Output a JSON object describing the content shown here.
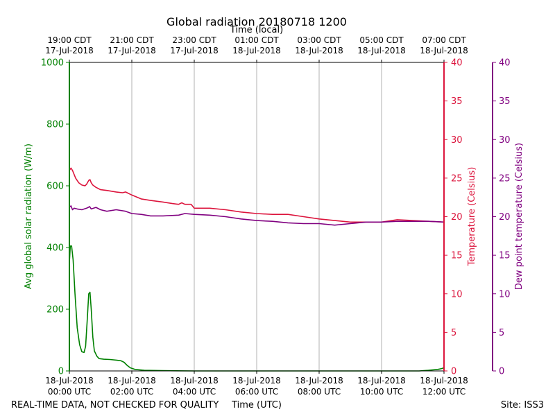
{
  "chart_data": {
    "type": "line",
    "title": "Global radiation 20180718 1200",
    "xlabel": "Time (UTC)",
    "xlabel_top": "Time (local)",
    "xlim": [
      0,
      12
    ],
    "x_ticks_bottom": [
      {
        "value": 0,
        "line1": "18-Jul-2018",
        "line2": "00:00 UTC"
      },
      {
        "value": 2,
        "line1": "18-Jul-2018",
        "line2": "02:00 UTC"
      },
      {
        "value": 4,
        "line1": "18-Jul-2018",
        "line2": "04:00 UTC"
      },
      {
        "value": 6,
        "line1": "18-Jul-2018",
        "line2": "06:00 UTC"
      },
      {
        "value": 8,
        "line1": "18-Jul-2018",
        "line2": "08:00 UTC"
      },
      {
        "value": 10,
        "line1": "18-Jul-2018",
        "line2": "10:00 UTC"
      },
      {
        "value": 12,
        "line1": "18-Jul-2018",
        "line2": "12:00 UTC"
      }
    ],
    "x_ticks_top": [
      {
        "value": 0,
        "line1": "19:00 CDT",
        "line2": "17-Jul-2018"
      },
      {
        "value": 2,
        "line1": "21:00 CDT",
        "line2": "17-Jul-2018"
      },
      {
        "value": 4,
        "line1": "23:00 CDT",
        "line2": "17-Jul-2018"
      },
      {
        "value": 6,
        "line1": "01:00 CDT",
        "line2": "18-Jul-2018"
      },
      {
        "value": 8,
        "line1": "03:00 CDT",
        "line2": "18-Jul-2018"
      },
      {
        "value": 10,
        "line1": "05:00 CDT",
        "line2": "18-Jul-2018"
      },
      {
        "value": 12,
        "line1": "07:00 CDT",
        "line2": "18-Jul-2018"
      }
    ],
    "grid": "vertical",
    "axes": {
      "radiation": {
        "label": "Avg global solar radiation (W/m)",
        "ylim": [
          0,
          1000
        ],
        "ticks": [
          0,
          200,
          400,
          600,
          800,
          1000
        ],
        "color": "#008000"
      },
      "temperature": {
        "label": "Temperature (Celsius)",
        "ylim": [
          0,
          40
        ],
        "ticks": [
          0,
          5,
          10,
          15,
          20,
          25,
          30,
          35,
          40
        ],
        "color": "#dc143c"
      },
      "dewpoint": {
        "label": "Dew point temperature (Celsius)",
        "ylim": [
          0,
          40
        ],
        "ticks": [
          0,
          5,
          10,
          15,
          20,
          25,
          30,
          35,
          40
        ],
        "color": "#800080"
      }
    },
    "series": [
      {
        "name": "Global radiation",
        "axis": "radiation",
        "color": "#008000",
        "points": [
          [
            0,
            350
          ],
          [
            0.03,
            405
          ],
          [
            0.07,
            405
          ],
          [
            0.12,
            360
          ],
          [
            0.18,
            250
          ],
          [
            0.25,
            140
          ],
          [
            0.33,
            85
          ],
          [
            0.4,
            62
          ],
          [
            0.47,
            60
          ],
          [
            0.52,
            80
          ],
          [
            0.57,
            160
          ],
          [
            0.62,
            250
          ],
          [
            0.66,
            255
          ],
          [
            0.7,
            200
          ],
          [
            0.75,
            110
          ],
          [
            0.8,
            65
          ],
          [
            0.88,
            48
          ],
          [
            0.95,
            40
          ],
          [
            1.1,
            38
          ],
          [
            1.3,
            37
          ],
          [
            1.5,
            35
          ],
          [
            1.65,
            33
          ],
          [
            1.75,
            28
          ],
          [
            1.85,
            18
          ],
          [
            1.95,
            10
          ],
          [
            2.1,
            5
          ],
          [
            2.4,
            2
          ],
          [
            3,
            1
          ],
          [
            4,
            0
          ],
          [
            6,
            0
          ],
          [
            8,
            0
          ],
          [
            10,
            0
          ],
          [
            11.2,
            0
          ],
          [
            11.5,
            2
          ],
          [
            11.8,
            5
          ],
          [
            11.95,
            8
          ],
          [
            12,
            12
          ]
        ]
      },
      {
        "name": "Temperature",
        "axis": "temperature",
        "color": "#dc143c",
        "points": [
          [
            0,
            26.0
          ],
          [
            0.05,
            26.3
          ],
          [
            0.1,
            26.0
          ],
          [
            0.2,
            25.0
          ],
          [
            0.3,
            24.4
          ],
          [
            0.4,
            24.1
          ],
          [
            0.5,
            24.0
          ],
          [
            0.55,
            24.2
          ],
          [
            0.62,
            24.7
          ],
          [
            0.66,
            24.8
          ],
          [
            0.7,
            24.4
          ],
          [
            0.75,
            24.1
          ],
          [
            0.85,
            23.8
          ],
          [
            1.0,
            23.5
          ],
          [
            1.2,
            23.4
          ],
          [
            1.5,
            23.2
          ],
          [
            1.7,
            23.1
          ],
          [
            1.8,
            23.2
          ],
          [
            2.0,
            22.8
          ],
          [
            2.3,
            22.3
          ],
          [
            2.6,
            22.1
          ],
          [
            3.0,
            21.9
          ],
          [
            3.3,
            21.7
          ],
          [
            3.5,
            21.6
          ],
          [
            3.6,
            21.8
          ],
          [
            3.7,
            21.6
          ],
          [
            3.9,
            21.6
          ],
          [
            4.0,
            21.1
          ],
          [
            4.5,
            21.1
          ],
          [
            5.0,
            20.9
          ],
          [
            5.5,
            20.6
          ],
          [
            6.0,
            20.4
          ],
          [
            6.5,
            20.3
          ],
          [
            7.0,
            20.3
          ],
          [
            7.5,
            20.0
          ],
          [
            8.0,
            19.7
          ],
          [
            8.5,
            19.5
          ],
          [
            9.0,
            19.3
          ],
          [
            9.5,
            19.3
          ],
          [
            10.0,
            19.3
          ],
          [
            10.5,
            19.6
          ],
          [
            11.0,
            19.5
          ],
          [
            11.5,
            19.4
          ],
          [
            12.0,
            19.3
          ]
        ]
      },
      {
        "name": "Dew point",
        "axis": "dewpoint",
        "color": "#800080",
        "points": [
          [
            0,
            21.2
          ],
          [
            0.05,
            21.4
          ],
          [
            0.1,
            20.9
          ],
          [
            0.15,
            21.1
          ],
          [
            0.25,
            21.0
          ],
          [
            0.4,
            20.9
          ],
          [
            0.55,
            21.1
          ],
          [
            0.65,
            21.3
          ],
          [
            0.7,
            21.0
          ],
          [
            0.85,
            21.2
          ],
          [
            1.0,
            20.9
          ],
          [
            1.2,
            20.7
          ],
          [
            1.5,
            20.9
          ],
          [
            1.8,
            20.7
          ],
          [
            2.0,
            20.4
          ],
          [
            2.3,
            20.3
          ],
          [
            2.6,
            20.1
          ],
          [
            3.0,
            20.1
          ],
          [
            3.5,
            20.2
          ],
          [
            3.7,
            20.4
          ],
          [
            4.0,
            20.3
          ],
          [
            4.5,
            20.2
          ],
          [
            5.0,
            20.0
          ],
          [
            5.5,
            19.7
          ],
          [
            6.0,
            19.5
          ],
          [
            6.5,
            19.4
          ],
          [
            7.0,
            19.2
          ],
          [
            7.5,
            19.1
          ],
          [
            8.0,
            19.1
          ],
          [
            8.5,
            18.9
          ],
          [
            9.0,
            19.1
          ],
          [
            9.5,
            19.3
          ],
          [
            10.0,
            19.3
          ],
          [
            10.5,
            19.4
          ],
          [
            11.0,
            19.4
          ],
          [
            11.5,
            19.4
          ],
          [
            12.0,
            19.3
          ]
        ]
      }
    ]
  },
  "footer": {
    "left": "REAL-TIME DATA, NOT CHECKED FOR QUALITY",
    "right": "Site: ISS3"
  }
}
